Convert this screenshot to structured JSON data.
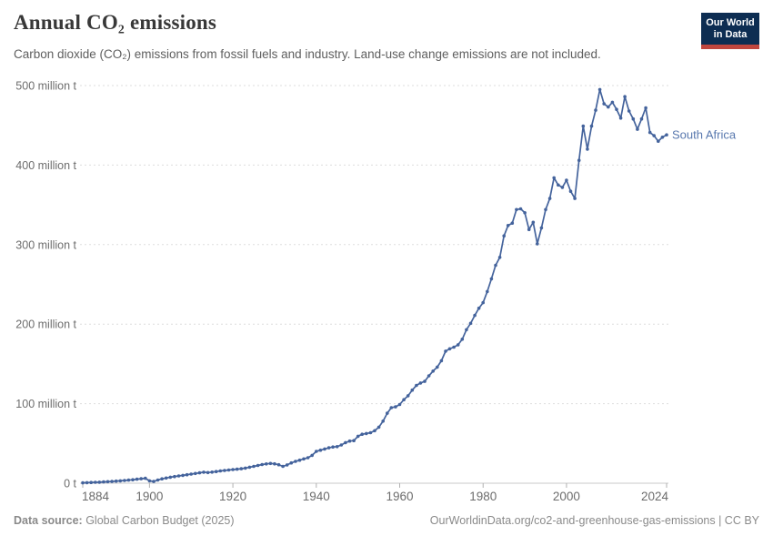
{
  "header": {
    "title": "Annual CO₂ emissions",
    "subtitle": "Carbon dioxide (CO₂) emissions from fossil fuels and industry. Land-use change emissions are not included.",
    "logo": {
      "line1": "Our World",
      "line2": "in Data"
    }
  },
  "footer": {
    "source_label": "Data source:",
    "source_text": " Global Carbon Budget (2025)",
    "credit": "OurWorldinData.org/co2-and-greenhouse-gas-emissions | CC BY"
  },
  "colors": {
    "line": "#44639c",
    "entity_label": "#5878ae",
    "grid": "#dddddd",
    "axis": "#c8c8c8",
    "tick": "#b0b0b0",
    "y_label": "#6d6d6d",
    "x_label": "#6d6d6d",
    "title": "#383838",
    "subtitle": "#5e5e5e",
    "footer": "#8a8a8a",
    "logo_bg": "#0d2d52",
    "logo_stripe": "#c0463e"
  },
  "chart_data": {
    "type": "line",
    "title": "Annual CO₂ emissions",
    "unit": "million t",
    "entity": "South Africa",
    "xlim": [
      1884,
      2024
    ],
    "ylim": [
      0,
      500
    ],
    "grid": "horizontal dashed",
    "legend_position": "end-of-line label",
    "x_ticks": [
      1884,
      1900,
      1920,
      1940,
      1960,
      1980,
      2000,
      2024
    ],
    "y_ticks": [
      {
        "value": 0,
        "label": "0 t"
      },
      {
        "value": 100,
        "label": "100 million t"
      },
      {
        "value": 200,
        "label": "200 million t"
      },
      {
        "value": 300,
        "label": "300 million t"
      },
      {
        "value": 400,
        "label": "400 million t"
      },
      {
        "value": 500,
        "label": "500 million t"
      }
    ],
    "series": [
      {
        "name": "South Africa",
        "points": [
          [
            1884,
            0.5
          ],
          [
            1885,
            0.7
          ],
          [
            1886,
            0.9
          ],
          [
            1887,
            1.1
          ],
          [
            1888,
            1.3
          ],
          [
            1889,
            1.6
          ],
          [
            1890,
            1.9
          ],
          [
            1891,
            2.2
          ],
          [
            1892,
            2.6
          ],
          [
            1893,
            3.0
          ],
          [
            1894,
            3.4
          ],
          [
            1895,
            3.9
          ],
          [
            1896,
            4.4
          ],
          [
            1897,
            5.0
          ],
          [
            1898,
            5.6
          ],
          [
            1899,
            6.2
          ],
          [
            1900,
            3.0
          ],
          [
            1901,
            2.2
          ],
          [
            1902,
            4.0
          ],
          [
            1903,
            5.5
          ],
          [
            1904,
            6.5
          ],
          [
            1905,
            7.5
          ],
          [
            1906,
            8.3
          ],
          [
            1907,
            9.1
          ],
          [
            1908,
            9.8
          ],
          [
            1909,
            10.6
          ],
          [
            1910,
            11.4
          ],
          [
            1911,
            12.2
          ],
          [
            1912,
            13.0
          ],
          [
            1913,
            13.8
          ],
          [
            1914,
            13.4
          ],
          [
            1915,
            14.0
          ],
          [
            1916,
            14.6
          ],
          [
            1917,
            15.4
          ],
          [
            1918,
            16.0
          ],
          [
            1919,
            16.6
          ],
          [
            1920,
            17.2
          ],
          [
            1921,
            17.6
          ],
          [
            1922,
            18.2
          ],
          [
            1923,
            19.0
          ],
          [
            1924,
            20.1
          ],
          [
            1925,
            21.2
          ],
          [
            1926,
            22.3
          ],
          [
            1927,
            23.4
          ],
          [
            1928,
            24.2
          ],
          [
            1929,
            24.8
          ],
          [
            1930,
            24.4
          ],
          [
            1931,
            23.2
          ],
          [
            1932,
            21.2
          ],
          [
            1933,
            23.0
          ],
          [
            1934,
            25.5
          ],
          [
            1935,
            27.5
          ],
          [
            1936,
            29.0
          ],
          [
            1937,
            30.5
          ],
          [
            1938,
            32.0
          ],
          [
            1939,
            35.0
          ],
          [
            1940,
            40.0
          ],
          [
            1941,
            41.5
          ],
          [
            1942,
            43.0
          ],
          [
            1943,
            44.5
          ],
          [
            1944,
            45.5
          ],
          [
            1945,
            46.0
          ],
          [
            1946,
            48.0
          ],
          [
            1947,
            51.0
          ],
          [
            1948,
            53.0
          ],
          [
            1949,
            53.5
          ],
          [
            1950,
            59.0
          ],
          [
            1951,
            61.5
          ],
          [
            1952,
            62.5
          ],
          [
            1953,
            63.5
          ],
          [
            1954,
            66.0
          ],
          [
            1955,
            70.5
          ],
          [
            1956,
            78.0
          ],
          [
            1957,
            88.0
          ],
          [
            1958,
            95.0
          ],
          [
            1959,
            96.0
          ],
          [
            1960,
            99.0
          ],
          [
            1961,
            105
          ],
          [
            1962,
            110
          ],
          [
            1963,
            117
          ],
          [
            1964,
            123
          ],
          [
            1965,
            126
          ],
          [
            1966,
            128
          ],
          [
            1967,
            135
          ],
          [
            1968,
            141
          ],
          [
            1969,
            146
          ],
          [
            1970,
            154
          ],
          [
            1971,
            166
          ],
          [
            1972,
            169
          ],
          [
            1973,
            171
          ],
          [
            1974,
            174
          ],
          [
            1975,
            181
          ],
          [
            1976,
            193
          ],
          [
            1977,
            201
          ],
          [
            1978,
            211
          ],
          [
            1979,
            220
          ],
          [
            1980,
            227
          ],
          [
            1981,
            241
          ],
          [
            1982,
            257
          ],
          [
            1983,
            274
          ],
          [
            1984,
            284
          ],
          [
            1985,
            311
          ],
          [
            1986,
            324
          ],
          [
            1987,
            327
          ],
          [
            1988,
            344
          ],
          [
            1989,
            345
          ],
          [
            1990,
            340
          ],
          [
            1991,
            319
          ],
          [
            1992,
            328
          ],
          [
            1993,
            301
          ],
          [
            1994,
            321
          ],
          [
            1995,
            344
          ],
          [
            1996,
            358
          ],
          [
            1997,
            384
          ],
          [
            1998,
            375
          ],
          [
            1999,
            372
          ],
          [
            2000,
            381
          ],
          [
            2001,
            367
          ],
          [
            2002,
            358
          ],
          [
            2003,
            406
          ],
          [
            2004,
            449
          ],
          [
            2005,
            420
          ],
          [
            2006,
            449
          ],
          [
            2007,
            469
          ],
          [
            2008,
            495
          ],
          [
            2009,
            477
          ],
          [
            2010,
            473
          ],
          [
            2011,
            479
          ],
          [
            2012,
            470
          ],
          [
            2013,
            459
          ],
          [
            2014,
            486
          ],
          [
            2015,
            468
          ],
          [
            2016,
            458
          ],
          [
            2017,
            445
          ],
          [
            2018,
            458
          ],
          [
            2019,
            472
          ],
          [
            2020,
            441
          ],
          [
            2021,
            437
          ],
          [
            2022,
            430
          ],
          [
            2023,
            435
          ],
          [
            2024,
            438
          ]
        ]
      }
    ]
  }
}
